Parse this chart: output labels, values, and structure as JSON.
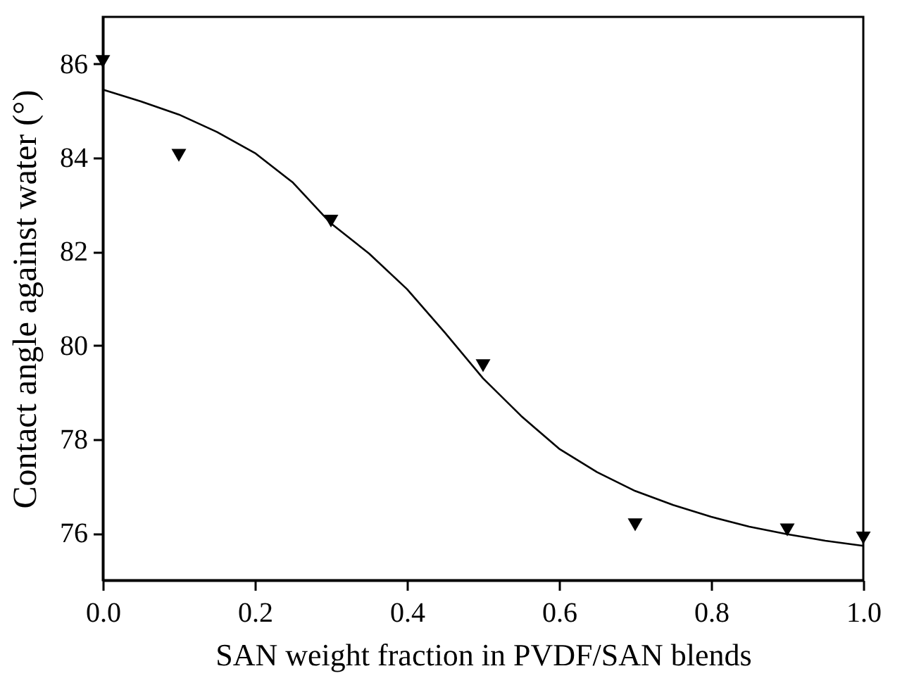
{
  "chart_data": {
    "type": "scatter",
    "xlabel": "SAN weight fraction in PVDF/SAN blends",
    "ylabel": "Contact angle against water (°)",
    "xlim": [
      0,
      1
    ],
    "xticks": [
      {
        "value": 0,
        "label": "0.0"
      },
      0.2,
      0.4,
      0.6,
      0.8,
      {
        "value": 1,
        "label": "1.0"
      }
    ],
    "ylim": [
      75,
      87
    ],
    "yticks": [
      76,
      78,
      80,
      82,
      84,
      86
    ],
    "series": [
      {
        "marker": "triangle",
        "color": "#000000",
        "x": [
          0,
          0.1,
          0.3,
          0.5,
          0.7,
          0.9,
          1.0
        ],
        "values": [
          86.05,
          84.05,
          82.65,
          79.57,
          76.18,
          76.07,
          75.9
        ]
      },
      {
        "type": "line",
        "line_style": "solid",
        "color": "#000000",
        "x": [
          0,
          0.05,
          0.1,
          0.15,
          0.2,
          0.25,
          0.3,
          0.35,
          0.4,
          0.45,
          0.5,
          0.55,
          0.6,
          0.65,
          0.7,
          0.75,
          0.8,
          0.85,
          0.9,
          0.95,
          1.0
        ],
        "values": [
          85.45,
          85.2,
          84.92,
          84.55,
          84.1,
          83.47,
          82.6,
          81.96,
          81.2,
          80.27,
          79.3,
          78.5,
          77.8,
          77.3,
          76.9,
          76.6,
          76.35,
          76.14,
          75.98,
          75.84,
          75.73
        ]
      }
    ]
  }
}
